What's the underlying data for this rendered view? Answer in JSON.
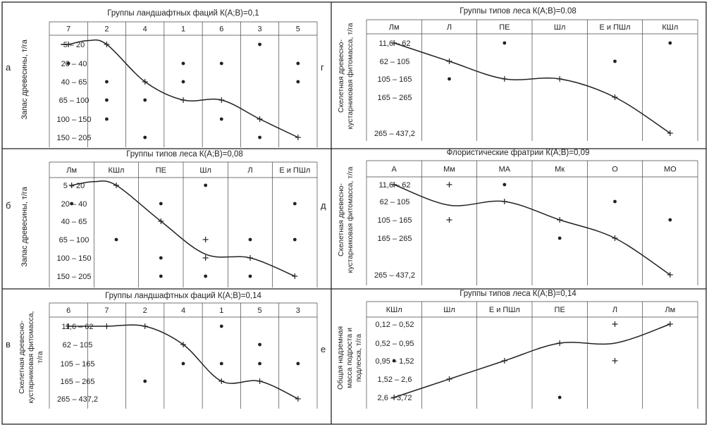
{
  "panels": [
    {
      "letter": "а",
      "title": "Группы ландшафтных фаций  К(А;В)=0,1",
      "ylabel": [
        "Запас древесины, т/га"
      ],
      "columns": [
        "7",
        "2",
        "4",
        "1",
        "6",
        "3",
        "5"
      ],
      "rows": [
        "5 – 20",
        "20 – 40",
        "40 – 65",
        "65 – 100",
        "100 – 150",
        "150 – 205"
      ],
      "points": [
        {
          "col": 0,
          "row": 0,
          "m": "+"
        },
        {
          "col": 1,
          "row": 0,
          "m": "+"
        },
        {
          "col": 2,
          "row": 2,
          "m": "+"
        },
        {
          "col": 3,
          "row": 3,
          "m": "+"
        },
        {
          "col": 4,
          "row": 3,
          "m": "+"
        },
        {
          "col": 5,
          "row": 4,
          "m": "+"
        },
        {
          "col": 6,
          "row": 5,
          "m": "+"
        },
        {
          "col": 5,
          "row": 0,
          "m": "•"
        },
        {
          "col": 0,
          "row": 1,
          "m": "•"
        },
        {
          "col": 3,
          "row": 1,
          "m": "•"
        },
        {
          "col": 4,
          "row": 1,
          "m": "•"
        },
        {
          "col": 6,
          "row": 1,
          "m": "•"
        },
        {
          "col": 1,
          "row": 2,
          "m": "•"
        },
        {
          "col": 3,
          "row": 2,
          "m": "•"
        },
        {
          "col": 6,
          "row": 2,
          "m": "•"
        },
        {
          "col": 1,
          "row": 3,
          "m": "•"
        },
        {
          "col": 2,
          "row": 3,
          "m": "•"
        },
        {
          "col": 1,
          "row": 4,
          "m": "•"
        },
        {
          "col": 4,
          "row": 4,
          "m": "•"
        },
        {
          "col": 2,
          "row": 5,
          "m": "•"
        },
        {
          "col": 5,
          "row": 5,
          "m": "•"
        }
      ],
      "curve": [
        [
          -0.2,
          0
        ],
        [
          0,
          0
        ],
        [
          0.5,
          -0.2
        ],
        [
          1,
          0
        ],
        [
          2,
          2
        ],
        [
          3,
          3
        ],
        [
          4,
          3
        ],
        [
          5,
          4
        ],
        [
          6,
          5
        ]
      ]
    },
    {
      "letter": "б",
      "title": "Группы типов леса    К(А;В)=0,08",
      "ylabel": [
        "Запас древесины, т/га"
      ],
      "columns": [
        "Лм",
        "КШл",
        "ПЕ",
        "Шл",
        "Л",
        "Е и ПШл"
      ],
      "rows": [
        "5 – 20",
        "20 – 40",
        "40 – 65",
        "65 – 100",
        "100 – 150",
        "150 – 205"
      ],
      "points": [
        {
          "col": 0,
          "row": 0,
          "m": "+"
        },
        {
          "col": 1,
          "row": 0,
          "m": "+"
        },
        {
          "col": 2,
          "row": 2,
          "m": "+"
        },
        {
          "col": 3,
          "row": 4,
          "m": "+"
        },
        {
          "col": 4,
          "row": 4,
          "m": "+"
        },
        {
          "col": 5,
          "row": 5,
          "m": "+"
        },
        {
          "col": 3,
          "row": 3,
          "m": "+"
        },
        {
          "col": 3,
          "row": 0,
          "m": "•"
        },
        {
          "col": 0,
          "row": 1,
          "m": "•"
        },
        {
          "col": 2,
          "row": 1,
          "m": "•"
        },
        {
          "col": 5,
          "row": 1,
          "m": "•"
        },
        {
          "col": 1,
          "row": 3,
          "m": "•"
        },
        {
          "col": 4,
          "row": 3,
          "m": "•"
        },
        {
          "col": 5,
          "row": 3,
          "m": "•"
        },
        {
          "col": 2,
          "row": 4,
          "m": "•"
        },
        {
          "col": 2,
          "row": 5,
          "m": "•"
        },
        {
          "col": 3,
          "row": 5,
          "m": "•"
        },
        {
          "col": 4,
          "row": 5,
          "m": "•"
        }
      ],
      "curve": [
        [
          0,
          0
        ],
        [
          0.5,
          -0.2
        ],
        [
          1,
          0
        ],
        [
          2,
          2
        ],
        [
          3,
          3.8
        ],
        [
          4,
          4
        ],
        [
          5,
          5
        ]
      ]
    },
    {
      "letter": "в",
      "title": "Группы ландшафтных фаций К(А;В)=0,14",
      "ylabel": [
        "Скелетная древесно-",
        "кустарниковая фитомасса,",
        "т/га"
      ],
      "columns": [
        "6",
        "7",
        "2",
        "4",
        "1",
        "5",
        "3"
      ],
      "rows": [
        "11,6 – 62",
        "62 – 105",
        "105 – 165",
        "165 – 265",
        "265 – 437,2"
      ],
      "points": [
        {
          "col": 0,
          "row": 0,
          "m": "+"
        },
        {
          "col": 1,
          "row": 0,
          "m": "+"
        },
        {
          "col": 2,
          "row": 0,
          "m": "+"
        },
        {
          "col": 3,
          "row": 1,
          "m": "+"
        },
        {
          "col": 4,
          "row": 3,
          "m": "+"
        },
        {
          "col": 5,
          "row": 3,
          "m": "+"
        },
        {
          "col": 6,
          "row": 4,
          "m": "+"
        },
        {
          "col": 4,
          "row": 0,
          "m": "•"
        },
        {
          "col": 5,
          "row": 1,
          "m": "•"
        },
        {
          "col": 3,
          "row": 2,
          "m": "•"
        },
        {
          "col": 4,
          "row": 2,
          "m": "•"
        },
        {
          "col": 5,
          "row": 2,
          "m": "•"
        },
        {
          "col": 6,
          "row": 2,
          "m": "•"
        },
        {
          "col": 2,
          "row": 3,
          "m": "•"
        }
      ],
      "curve": [
        [
          0,
          0
        ],
        [
          1,
          0
        ],
        [
          2,
          0
        ],
        [
          3,
          1
        ],
        [
          4,
          3
        ],
        [
          5,
          3
        ],
        [
          6,
          4
        ]
      ]
    },
    {
      "letter": "г",
      "title": "Группы типов леса К(А;В)=0.08",
      "ylabel": [
        "Скелетная древесно-",
        "кустарниковая фитомасса, т/га"
      ],
      "columns": [
        "Лм",
        "Л",
        "ПЕ",
        "Шл",
        "Е и ПШл",
        "КШл"
      ],
      "rows": [
        "11,6 – 62",
        "62 – 105",
        "105 – 165",
        "165 – 265",
        "265 – 437,2"
      ],
      "points": [
        {
          "col": 0,
          "row": 0,
          "m": "+"
        },
        {
          "col": 1,
          "row": 1,
          "m": "+"
        },
        {
          "col": 2,
          "row": 2,
          "m": "+"
        },
        {
          "col": 3,
          "row": 2,
          "m": "+"
        },
        {
          "col": 4,
          "row": 3,
          "m": "+"
        },
        {
          "col": 5,
          "row": 4,
          "m": "+"
        },
        {
          "col": 2,
          "row": 0,
          "m": "•"
        },
        {
          "col": 5,
          "row": 0,
          "m": "•"
        },
        {
          "col": 4,
          "row": 1,
          "m": "•"
        },
        {
          "col": 1,
          "row": 2,
          "m": "•"
        }
      ],
      "curve": [
        [
          0,
          0
        ],
        [
          1,
          1
        ],
        [
          2,
          2
        ],
        [
          3,
          2
        ],
        [
          4,
          3
        ],
        [
          5,
          4
        ]
      ]
    },
    {
      "letter": "д",
      "title": "Флористические фратрии К(А;В)=0,09",
      "ylabel": [
        "Скелетная древесно-",
        "кустарниковая фитомасса, т/га"
      ],
      "columns": [
        "А",
        "Мм",
        "МА",
        "Мк",
        "О",
        "МО"
      ],
      "rows": [
        "11,6 – 62",
        "62 – 105",
        "105 – 165",
        "165 – 265",
        "265 – 437,2"
      ],
      "points": [
        {
          "col": 0,
          "row": 0,
          "m": "+"
        },
        {
          "col": 1,
          "row": 0,
          "m": "+"
        },
        {
          "col": 2,
          "row": 1,
          "m": "+"
        },
        {
          "col": 3,
          "row": 2,
          "m": "+"
        },
        {
          "col": 4,
          "row": 3,
          "m": "+"
        },
        {
          "col": 5,
          "row": 4,
          "m": "+"
        },
        {
          "col": 1,
          "row": 2,
          "m": "+"
        },
        {
          "col": 2,
          "row": 0,
          "m": "•"
        },
        {
          "col": 4,
          "row": 1,
          "m": "•"
        },
        {
          "col": 5,
          "row": 2,
          "m": "•"
        },
        {
          "col": 3,
          "row": 3,
          "m": "•"
        }
      ],
      "curve": [
        [
          0,
          0
        ],
        [
          1,
          1.2
        ],
        [
          2,
          1
        ],
        [
          3,
          2
        ],
        [
          4,
          3
        ],
        [
          5,
          4
        ]
      ]
    },
    {
      "letter": "е",
      "title": "Группы типов леса К(А;В)=0,14",
      "ylabel": [
        "Общая надземная",
        "масса подроста и",
        "подлеска, т/га"
      ],
      "columns": [
        "КШл",
        "Шл",
        "Е и ПШл",
        "ПЕ",
        "Л",
        "Лм"
      ],
      "rows": [
        "0,12 – 0,52",
        "0,52 – 0,95",
        "0,95 – 1,52",
        "1,52 – 2,6",
        "2,6 – 3,72"
      ],
      "points": [
        {
          "col": 0,
          "row": 4,
          "m": "+"
        },
        {
          "col": 1,
          "row": 3,
          "m": "+"
        },
        {
          "col": 2,
          "row": 2,
          "m": "+"
        },
        {
          "col": 3,
          "row": 1,
          "m": "+"
        },
        {
          "col": 4,
          "row": 0,
          "m": "+"
        },
        {
          "col": 5,
          "row": 0,
          "m": "+"
        },
        {
          "col": 4,
          "row": 2,
          "m": "+"
        },
        {
          "col": 0,
          "row": 2,
          "m": "•"
        },
        {
          "col": 3,
          "row": 4,
          "m": "•"
        }
      ],
      "curve": [
        [
          0,
          4
        ],
        [
          1,
          3
        ],
        [
          2,
          2
        ],
        [
          3,
          1
        ],
        [
          4,
          1
        ],
        [
          5,
          0
        ]
      ]
    }
  ]
}
